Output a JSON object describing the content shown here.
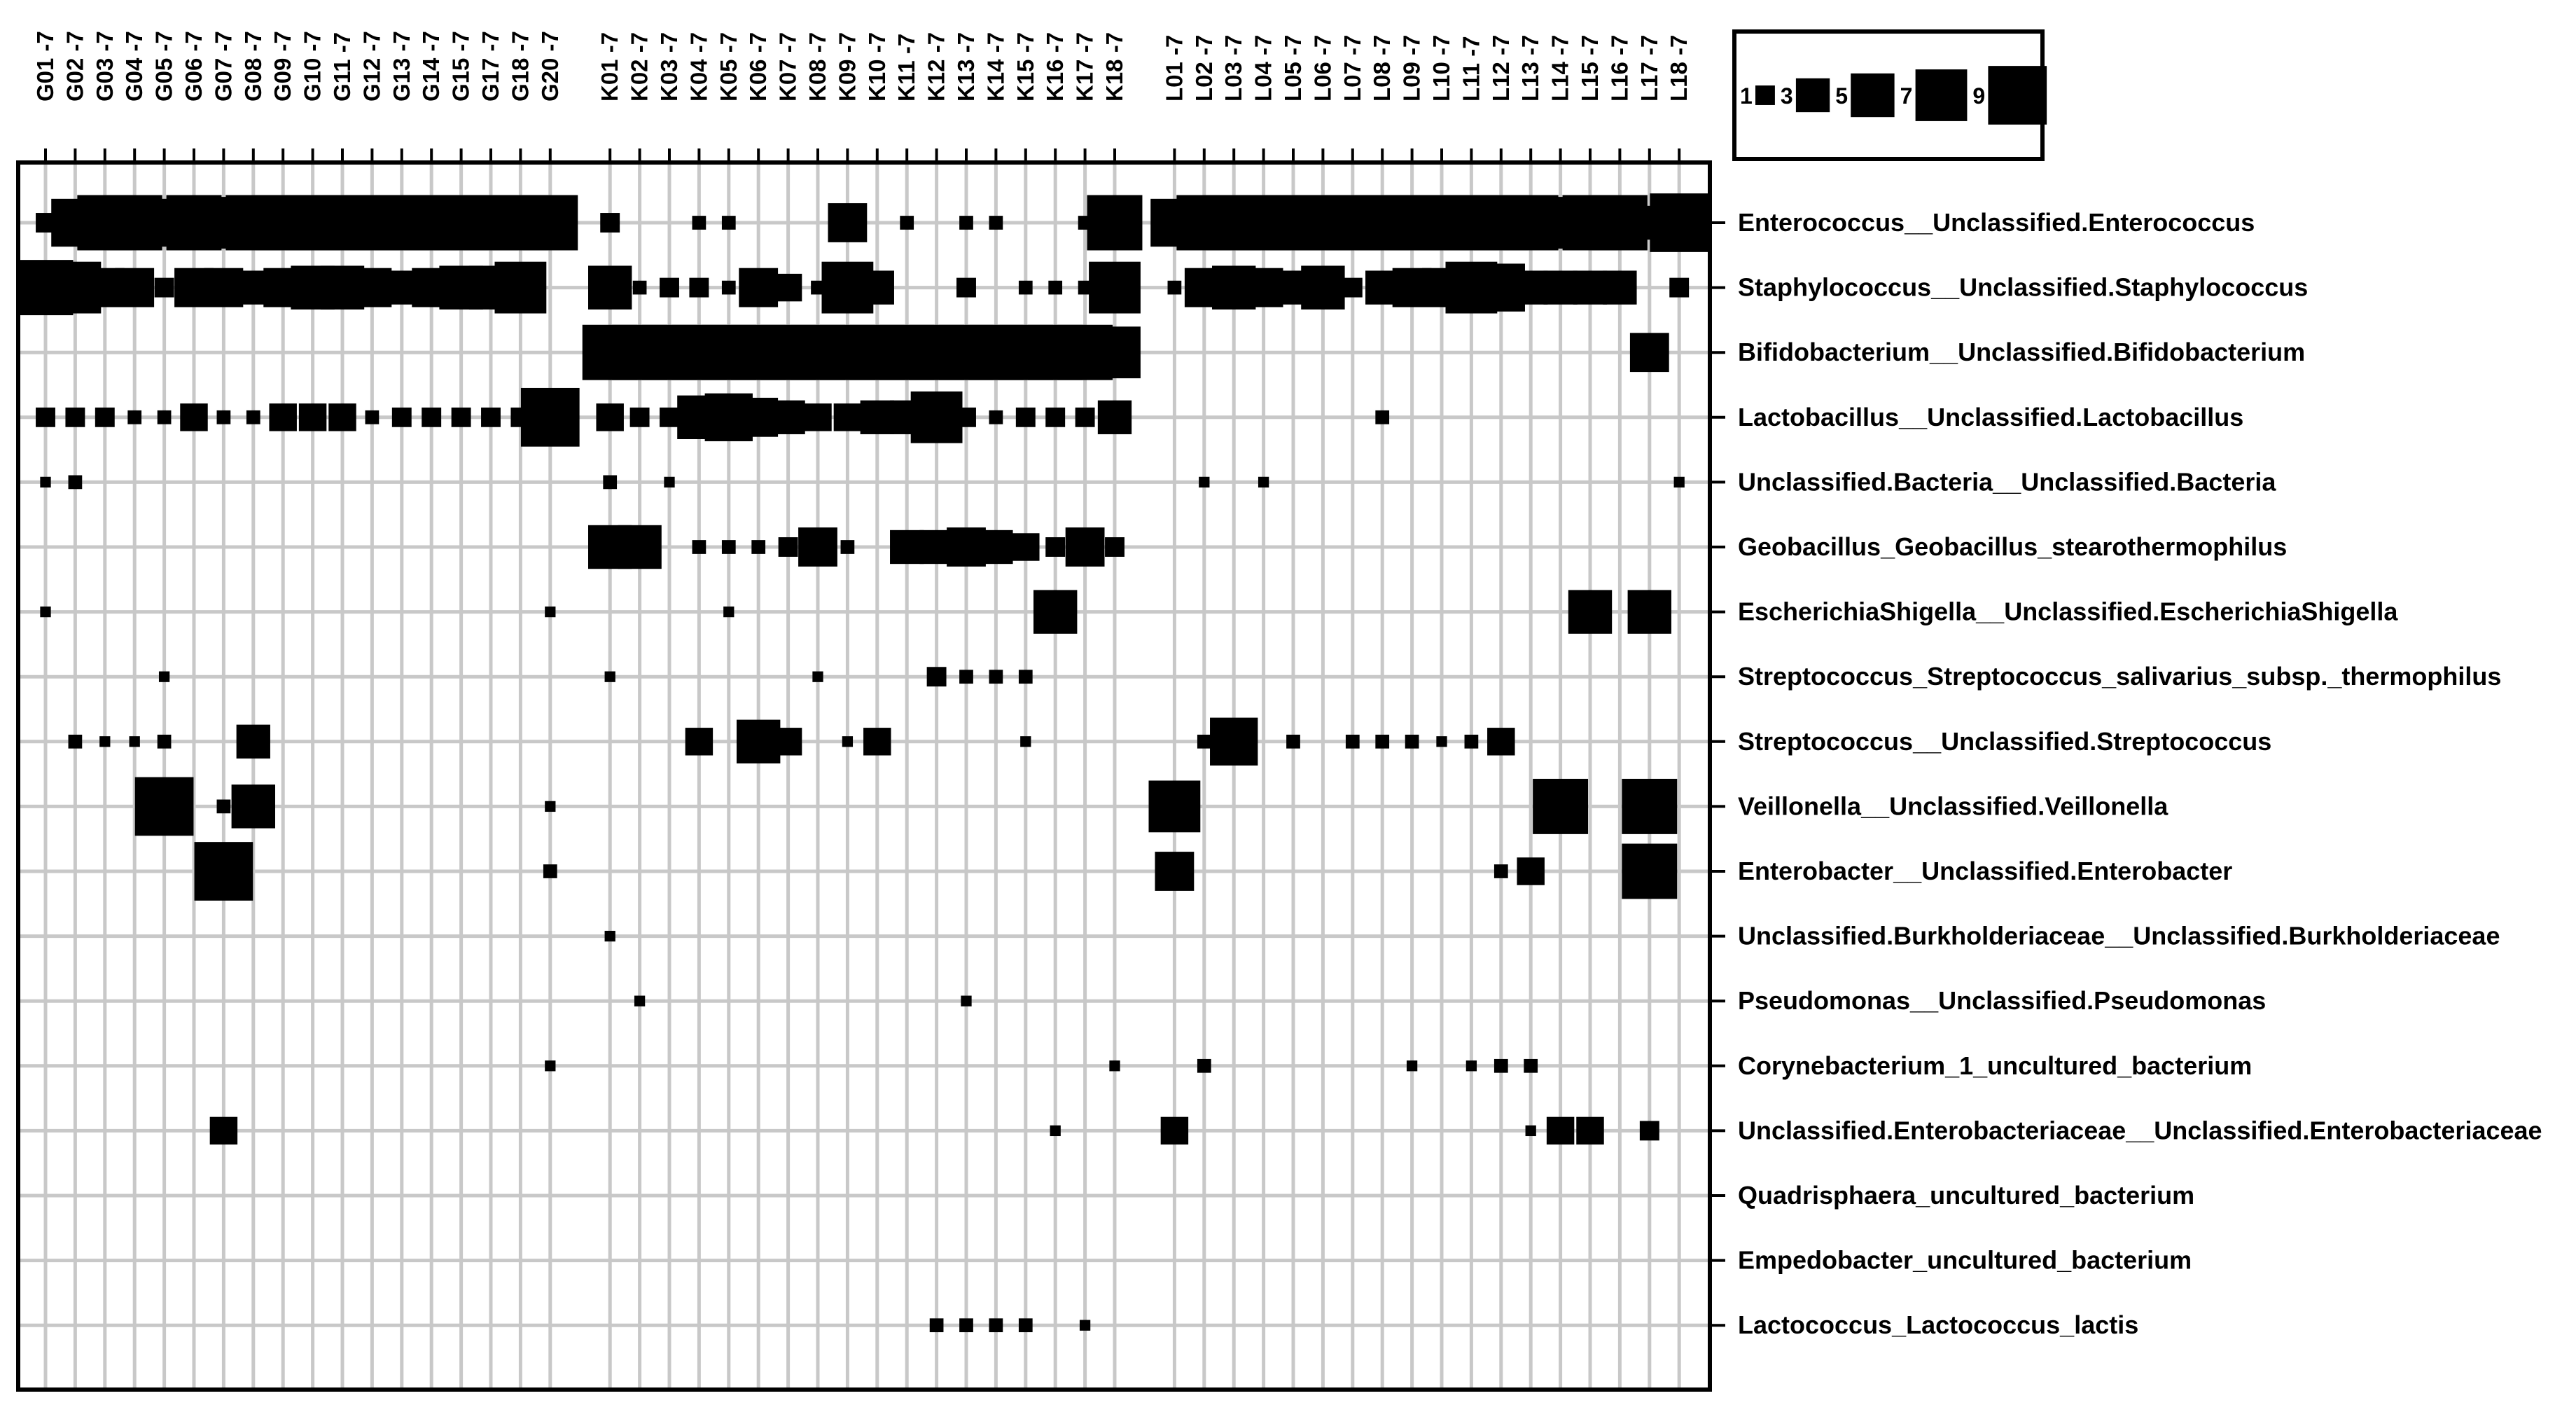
{
  "chart_data": {
    "type": "bubble-matrix",
    "title": "",
    "column_groups": [
      [
        "G01 -7",
        "G02 -7",
        "G03 -7",
        "G04 -7",
        "G05 -7",
        "G06 -7",
        "G07 -7",
        "G08 -7",
        "G09 -7",
        "G10 -7",
        "G11 -7",
        "G12 -7",
        "G13 -7",
        "G14 -7",
        "G15 -7",
        "G17 -7",
        "G18 -7",
        "G20 -7"
      ],
      [
        "K01 -7",
        "K02 -7",
        "K03 -7",
        "K04 -7",
        "K05 -7",
        "K06 -7",
        "K07 -7",
        "K08 -7",
        "K09 -7",
        "K10 -7",
        "K11 -7",
        "K12 -7",
        "K13 -7",
        "K14 -7",
        "K15 -7",
        "K16 -7",
        "K17 -7",
        "K18 -7"
      ],
      [
        "L01 -7",
        "L02 -7",
        "L03 -7",
        "L04 -7",
        "L05 -7",
        "L06 -7",
        "L07 -7",
        "L08 -7",
        "L09 -7",
        "L10 -7",
        "L11 -7",
        "L12 -7",
        "L13 -7",
        "L14 -7",
        "L15 -7",
        "L16 -7",
        "L17 -7",
        "L18 -7"
      ]
    ],
    "rows": [
      "Enterococcus__Unclassified.Enterococcus",
      "Staphylococcus__Unclassified.Staphylococcus",
      "Bifidobacterium__Unclassified.Bifidobacterium",
      "Lactobacillus__Unclassified.Lactobacillus",
      "Unclassified.Bacteria__Unclassified.Bacteria",
      "Geobacillus_Geobacillus_stearothermophilus",
      "EscherichiaShigella__Unclassified.EscherichiaShigella",
      "Streptococcus_Streptococcus_salivarius_subsp._thermophilus",
      "Streptococcus__Unclassified.Streptococcus",
      "Veillonella__Unclassified.Veillonella",
      "Enterobacter__Unclassified.Enterobacter",
      "Unclassified.Burkholderiaceae__Unclassified.Burkholderiaceae",
      "Pseudomonas__Unclassified.Pseudomonas",
      "Corynebacterium_1_uncultured_bacterium",
      "Unclassified.Enterobacteriaceae__Unclassified.Enterobacteriaceae",
      "Quadrisphaera_uncultured_bacterium",
      "Empedobacter_uncultured_bacterium",
      "Lactococcus_Lactococcus_lactis"
    ],
    "values": [
      [
        1,
        6,
        8,
        8,
        6,
        8,
        7,
        8,
        8,
        8,
        8,
        8,
        8,
        8,
        8,
        8,
        8,
        8,
        1,
        0,
        0,
        0.5,
        0.5,
        0,
        0,
        0,
        4,
        0,
        0.5,
        0,
        0.5,
        0.5,
        0,
        0,
        0.5,
        8,
        6,
        8,
        8,
        8,
        8,
        8,
        8,
        8,
        8,
        8,
        8,
        8,
        8,
        7,
        8,
        8,
        3,
        9
      ],
      [
        8,
        7,
        4,
        4,
        1,
        4,
        4,
        3,
        4,
        5,
        5,
        4,
        3,
        4,
        5,
        5,
        7,
        0,
        5,
        0.5,
        1,
        1,
        0.5,
        4,
        2,
        0.5,
        7,
        3,
        0,
        0,
        1,
        0,
        0.5,
        0.5,
        0.5,
        7,
        0.5,
        4,
        5,
        4,
        3,
        5,
        1,
        3,
        4,
        4,
        7,
        6,
        3,
        3,
        3,
        3,
        0,
        1
      ],
      [
        0,
        0,
        0,
        0,
        0,
        0,
        0,
        0,
        0,
        0,
        0,
        0,
        0,
        0,
        0,
        0,
        0,
        0,
        8,
        8,
        8,
        8,
        8,
        8,
        8,
        8,
        8,
        8,
        8,
        8,
        8,
        8,
        8,
        8,
        8,
        7,
        0,
        0,
        0,
        0,
        0,
        0,
        0,
        0,
        0,
        0,
        0,
        0,
        0,
        0,
        0,
        0,
        4,
        0
      ],
      [
        1,
        1,
        1,
        0.5,
        0.5,
        2,
        0.5,
        0.5,
        2,
        2,
        2,
        0.5,
        1,
        1,
        1,
        1,
        1,
        9,
        2,
        1,
        1,
        5,
        6,
        4,
        3,
        2,
        2,
        3,
        3,
        7,
        1,
        0.5,
        1,
        1,
        1,
        3,
        0,
        0,
        0,
        0,
        0,
        0,
        0,
        0.5,
        0,
        0,
        0,
        0,
        0,
        0,
        0,
        0,
        0,
        0
      ],
      [
        0.3,
        0.5,
        0,
        0,
        0,
        0,
        0,
        0,
        0,
        0,
        0,
        0,
        0,
        0,
        0,
        0,
        0,
        0,
        0.5,
        0,
        0.3,
        0,
        0,
        0,
        0,
        0,
        0,
        0,
        0,
        0,
        0,
        0,
        0,
        0,
        0,
        0,
        0,
        0.3,
        0,
        0.3,
        0,
        0,
        0,
        0,
        0,
        0,
        0,
        0,
        0,
        0,
        0,
        0,
        0,
        0.3
      ],
      [
        0,
        0,
        0,
        0,
        0,
        0,
        0,
        0,
        0,
        0,
        0,
        0,
        0,
        0,
        0,
        0,
        0,
        0,
        5,
        5,
        0,
        0.5,
        0.5,
        0.5,
        1,
        4,
        0.5,
        0,
        3,
        3,
        4,
        3,
        2,
        1,
        4,
        1,
        0,
        0,
        0,
        0,
        0,
        0,
        0,
        0,
        0,
        0,
        0,
        0,
        0,
        0,
        0,
        0,
        0,
        0
      ],
      [
        0.3,
        0,
        0,
        0,
        0,
        0,
        0,
        0,
        0,
        0,
        0,
        0,
        0,
        0,
        0,
        0,
        0,
        0.3,
        0,
        0,
        0,
        0,
        0.3,
        0,
        0,
        0,
        0,
        0,
        0,
        0,
        0,
        0,
        0,
        5,
        0,
        0,
        0,
        0,
        0,
        0,
        0,
        0,
        0,
        0,
        0,
        0,
        0,
        0,
        0,
        0,
        5,
        0,
        5,
        0
      ],
      [
        0,
        0,
        0,
        0,
        0.3,
        0,
        0,
        0,
        0,
        0,
        0,
        0,
        0,
        0,
        0,
        0,
        0,
        0,
        0.3,
        0,
        0,
        0,
        0,
        0,
        0,
        0.3,
        0,
        0,
        0,
        1,
        0.5,
        0.5,
        0.5,
        0,
        0,
        0,
        0,
        0,
        0,
        0,
        0,
        0,
        0,
        0,
        0,
        0,
        0,
        0,
        0,
        0,
        0,
        0,
        0,
        0
      ],
      [
        0,
        0.5,
        0.3,
        0.3,
        0.5,
        0,
        0,
        3,
        0,
        0,
        0,
        0,
        0,
        0,
        0,
        0,
        0,
        0,
        0,
        0,
        0,
        2,
        0,
        5,
        2,
        0,
        0.3,
        2,
        0,
        0,
        0,
        0,
        0.3,
        0,
        0,
        0,
        0,
        0.5,
        6,
        0,
        0.5,
        0,
        0.5,
        0.5,
        0.5,
        0.3,
        0.5,
        2,
        0,
        0,
        0,
        0,
        0,
        0
      ],
      [
        0,
        0,
        0,
        0,
        9,
        0,
        0.5,
        5,
        0,
        0,
        0,
        0,
        0,
        0,
        0,
        0,
        0,
        0.3,
        0,
        0,
        0,
        0,
        0,
        0,
        0,
        0,
        0,
        0,
        0,
        0,
        0,
        0,
        0,
        0,
        0,
        0,
        7,
        0,
        0,
        0,
        0,
        0,
        0,
        0,
        0,
        0,
        0,
        0,
        0,
        8,
        0,
        0,
        8,
        0
      ],
      [
        0,
        0,
        0,
        0,
        0,
        0,
        9,
        0,
        0,
        0,
        0,
        0,
        0,
        0,
        0,
        0,
        0,
        0.5,
        0,
        0,
        0,
        0,
        0,
        0,
        0,
        0,
        0,
        0,
        0,
        0,
        0,
        0,
        0,
        0,
        0,
        0,
        4,
        0,
        0,
        0,
        0,
        0,
        0,
        0,
        0,
        0,
        0,
        0.5,
        2,
        0,
        0,
        0,
        8,
        0
      ],
      [
        0,
        0,
        0,
        0,
        0,
        0,
        0,
        0,
        0,
        0,
        0,
        0,
        0,
        0,
        0,
        0,
        0,
        0,
        0.3,
        0,
        0,
        0,
        0,
        0,
        0,
        0,
        0,
        0,
        0,
        0,
        0,
        0,
        0,
        0,
        0,
        0,
        0,
        0,
        0,
        0,
        0,
        0,
        0,
        0,
        0,
        0,
        0,
        0,
        0,
        0,
        0,
        0,
        0,
        0
      ],
      [
        0,
        0,
        0,
        0,
        0,
        0,
        0,
        0,
        0,
        0,
        0,
        0,
        0,
        0,
        0,
        0,
        0,
        0,
        0,
        0.3,
        0,
        0,
        0,
        0,
        0,
        0,
        0,
        0,
        0,
        0,
        0.3,
        0,
        0,
        0,
        0,
        0,
        0,
        0,
        0,
        0,
        0,
        0,
        0,
        0,
        0,
        0,
        0,
        0,
        0,
        0,
        0,
        0,
        0,
        0
      ],
      [
        0,
        0,
        0,
        0,
        0,
        0,
        0,
        0,
        0,
        0,
        0,
        0,
        0,
        0,
        0,
        0,
        0,
        0.3,
        0,
        0,
        0,
        0,
        0,
        0,
        0,
        0,
        0,
        0,
        0,
        0,
        0,
        0,
        0,
        0,
        0,
        0.3,
        0,
        0.5,
        0,
        0,
        0,
        0,
        0,
        0,
        0.3,
        0,
        0.3,
        0.5,
        0.5,
        0,
        0,
        0,
        0,
        0
      ],
      [
        0,
        0,
        0,
        0,
        0,
        0,
        2,
        0,
        0,
        0,
        0,
        0,
        0,
        0,
        0,
        0,
        0,
        0,
        0,
        0,
        0,
        0,
        0,
        0,
        0,
        0,
        0,
        0,
        0,
        0,
        0,
        0,
        0,
        0.3,
        0,
        0,
        2,
        0,
        0,
        0,
        0,
        0,
        0,
        0,
        0,
        0,
        0,
        0,
        0.3,
        2,
        2,
        0,
        1,
        0
      ],
      [
        0,
        0,
        0,
        0,
        0,
        0,
        0,
        0,
        0,
        0,
        0,
        0,
        0,
        0,
        0,
        0,
        0,
        0,
        0,
        0,
        0,
        0,
        0,
        0,
        0,
        0,
        0,
        0,
        0,
        0,
        0,
        0,
        0,
        0,
        0,
        0,
        0,
        0,
        0,
        0,
        0,
        0,
        0,
        0,
        0,
        0,
        0,
        0,
        0,
        0,
        0,
        0,
        0,
        0
      ],
      [
        0,
        0,
        0,
        0,
        0,
        0,
        0,
        0,
        0,
        0,
        0,
        0,
        0,
        0,
        0,
        0,
        0,
        0,
        0,
        0,
        0,
        0,
        0,
        0,
        0,
        0,
        0,
        0,
        0,
        0,
        0,
        0,
        0,
        0,
        0,
        0,
        0,
        0,
        0,
        0,
        0,
        0,
        0,
        0,
        0,
        0,
        0,
        0,
        0,
        0,
        0,
        0,
        0,
        0
      ],
      [
        0,
        0,
        0,
        0,
        0,
        0,
        0,
        0,
        0,
        0,
        0,
        0,
        0,
        0,
        0,
        0,
        0,
        0,
        0,
        0,
        0,
        0,
        0,
        0,
        0,
        0,
        0,
        0,
        0,
        0.5,
        0.5,
        0.5,
        0.5,
        0,
        0.3,
        0,
        0,
        0,
        0,
        0,
        0,
        0,
        0,
        0,
        0,
        0,
        0,
        0,
        0,
        0,
        0,
        0,
        0,
        0
      ]
    ],
    "legend": {
      "position": "top-right",
      "values": [
        1,
        3,
        5,
        7,
        9
      ],
      "labels": [
        "1",
        "3",
        "5",
        "7",
        "9"
      ]
    },
    "colors": {
      "marker": "#000000",
      "grid": "#c8c8c8",
      "frame": "#000000",
      "background": "#ffffff"
    }
  }
}
